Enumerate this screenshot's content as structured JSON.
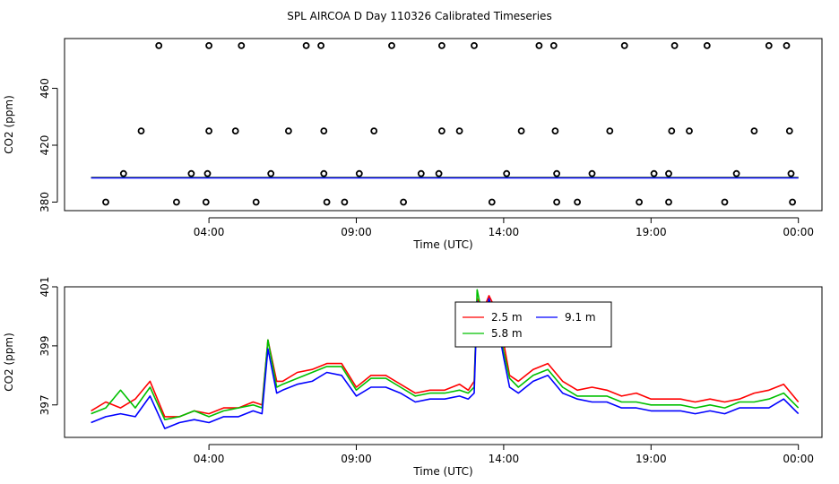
{
  "figure_title": "SPL AIRCOA D  Day 110326  Calibrated Timeseries",
  "chart_data": [
    {
      "type": "scatter",
      "title": "",
      "xlabel": "Time (UTC)",
      "ylabel": "CO2 (ppm)",
      "xlim": [
        -0.9,
        24.8
      ],
      "ylim": [
        374,
        495
      ],
      "x_ticks": [
        4,
        9,
        14,
        19,
        24
      ],
      "x_tick_labels": [
        "04:00",
        "09:00",
        "14:00",
        "19:00",
        "00:00"
      ],
      "y_ticks": [
        380,
        420,
        460
      ],
      "y_tick_labels": [
        "380",
        "420",
        "460"
      ],
      "points": [
        [
          0.5,
          380
        ],
        [
          1.1,
          400
        ],
        [
          1.7,
          430
        ],
        [
          2.3,
          490
        ],
        [
          2.9,
          380
        ],
        [
          3.4,
          400
        ],
        [
          3.9,
          380
        ],
        [
          3.95,
          400
        ],
        [
          4.0,
          430
        ],
        [
          4.0,
          490
        ],
        [
          4.9,
          430
        ],
        [
          5.1,
          490
        ],
        [
          5.6,
          380
        ],
        [
          6.1,
          400
        ],
        [
          6.7,
          430
        ],
        [
          7.3,
          490
        ],
        [
          7.8,
          490
        ],
        [
          7.9,
          430
        ],
        [
          7.9,
          400
        ],
        [
          8.0,
          380
        ],
        [
          8.6,
          380
        ],
        [
          9.1,
          400
        ],
        [
          9.6,
          430
        ],
        [
          10.2,
          490
        ],
        [
          10.6,
          380
        ],
        [
          11.2,
          400
        ],
        [
          11.8,
          400
        ],
        [
          11.9,
          430
        ],
        [
          11.9,
          490
        ],
        [
          12.5,
          430
        ],
        [
          13.0,
          490
        ],
        [
          13.6,
          380
        ],
        [
          14.1,
          400
        ],
        [
          14.6,
          430
        ],
        [
          15.2,
          490
        ],
        [
          15.7,
          490
        ],
        [
          15.75,
          430
        ],
        [
          15.8,
          400
        ],
        [
          15.8,
          380
        ],
        [
          16.5,
          380
        ],
        [
          17.0,
          400
        ],
        [
          17.6,
          430
        ],
        [
          18.1,
          490
        ],
        [
          18.6,
          380
        ],
        [
          19.1,
          400
        ],
        [
          19.6,
          400
        ],
        [
          19.7,
          430
        ],
        [
          19.8,
          490
        ],
        [
          19.6,
          380
        ],
        [
          20.3,
          430
        ],
        [
          20.9,
          490
        ],
        [
          21.5,
          380
        ],
        [
          21.9,
          400
        ],
        [
          22.5,
          430
        ],
        [
          23.0,
          490
        ],
        [
          23.6,
          490
        ],
        [
          23.7,
          430
        ],
        [
          23.75,
          400
        ],
        [
          23.8,
          380
        ]
      ],
      "series": [
        {
          "name": "2.5 m",
          "color": "#ff0000",
          "x": [
            0,
            24
          ],
          "values": [
            397.3,
            397.3
          ]
        },
        {
          "name": "5.8 m",
          "color": "#00c000",
          "x": [
            0,
            24
          ],
          "values": [
            397.2,
            397.2
          ]
        },
        {
          "name": "9.1 m",
          "color": "#0000ff",
          "x": [
            0,
            24
          ],
          "values": [
            397.0,
            397.0
          ]
        }
      ]
    },
    {
      "type": "line",
      "title": "",
      "xlabel": "Time (UTC)",
      "ylabel": "CO2 (ppm)",
      "xlim": [
        -0.9,
        24.8
      ],
      "ylim": [
        395.9,
        401.0
      ],
      "x_ticks": [
        4,
        9,
        14,
        19,
        24
      ],
      "x_tick_labels": [
        "04:00",
        "09:00",
        "14:00",
        "19:00",
        "00:00"
      ],
      "y_ticks": [
        397,
        399,
        401
      ],
      "y_tick_labels": [
        "397",
        "399",
        "401"
      ],
      "legend": {
        "position": "top-center",
        "entries": [
          "2.5 m",
          "5.8 m",
          "9.1 m"
        ]
      },
      "x": [
        0,
        0.5,
        1,
        1.5,
        2,
        2.5,
        3,
        3.5,
        4,
        4.5,
        5,
        5.5,
        5.8,
        6,
        6.3,
        6.5,
        7,
        7.5,
        8,
        8.5,
        9,
        9.5,
        10,
        10.5,
        11,
        11.5,
        12,
        12.5,
        12.8,
        13,
        13.1,
        13.3,
        13.5,
        13.8,
        14,
        14.2,
        14.5,
        15,
        15.5,
        16,
        16.5,
        17,
        17.5,
        18,
        18.5,
        19,
        19.5,
        20,
        20.5,
        21,
        21.5,
        22,
        22.5,
        23,
        23.5,
        24
      ],
      "series": [
        {
          "name": "2.5 m",
          "color": "#ff0000",
          "values": [
            396.8,
            397.1,
            396.9,
            397.2,
            397.8,
            396.6,
            396.6,
            396.8,
            396.7,
            396.9,
            396.9,
            397.1,
            397.0,
            399.2,
            397.8,
            397.8,
            398.1,
            398.2,
            398.4,
            398.4,
            397.6,
            398.0,
            398.0,
            397.7,
            397.4,
            397.5,
            397.5,
            397.7,
            397.5,
            397.8,
            400.6,
            400.2,
            400.7,
            400.1,
            399.1,
            398.0,
            397.8,
            398.2,
            398.4,
            397.8,
            397.5,
            397.6,
            397.5,
            397.3,
            397.4,
            397.2,
            397.2,
            397.2,
            397.1,
            397.2,
            397.1,
            397.2,
            397.4,
            397.5,
            397.7,
            397.1
          ]
        },
        {
          "name": "5.8 m",
          "color": "#00c000",
          "values": [
            396.7,
            396.9,
            397.5,
            396.9,
            397.6,
            396.5,
            396.6,
            396.8,
            396.6,
            396.8,
            396.9,
            397.0,
            396.9,
            399.2,
            397.6,
            397.7,
            397.9,
            398.1,
            398.3,
            398.3,
            397.5,
            397.9,
            397.9,
            397.6,
            397.3,
            397.4,
            397.4,
            397.5,
            397.4,
            397.6,
            400.9,
            399.9,
            400.5,
            399.9,
            398.8,
            397.9,
            397.6,
            398.0,
            398.2,
            397.6,
            397.3,
            397.3,
            397.3,
            397.1,
            397.1,
            397.0,
            397.0,
            397.0,
            396.9,
            397.0,
            396.9,
            397.1,
            397.1,
            397.2,
            397.4,
            396.9
          ]
        },
        {
          "name": "9.1 m",
          "color": "#0000ff",
          "values": [
            396.4,
            396.6,
            396.7,
            396.6,
            397.3,
            396.2,
            396.4,
            396.5,
            396.4,
            396.6,
            396.6,
            396.8,
            396.7,
            398.9,
            397.4,
            397.5,
            397.7,
            397.8,
            398.1,
            398.0,
            397.3,
            397.6,
            397.6,
            397.4,
            397.1,
            397.2,
            397.2,
            397.3,
            397.2,
            397.4,
            400.5,
            399.6,
            400.6,
            399.7,
            398.6,
            397.6,
            397.4,
            397.8,
            398.0,
            397.4,
            397.2,
            397.1,
            397.1,
            396.9,
            396.9,
            396.8,
            396.8,
            396.8,
            396.7,
            396.8,
            396.7,
            396.9,
            396.9,
            396.9,
            397.2,
            396.7
          ]
        }
      ]
    }
  ]
}
